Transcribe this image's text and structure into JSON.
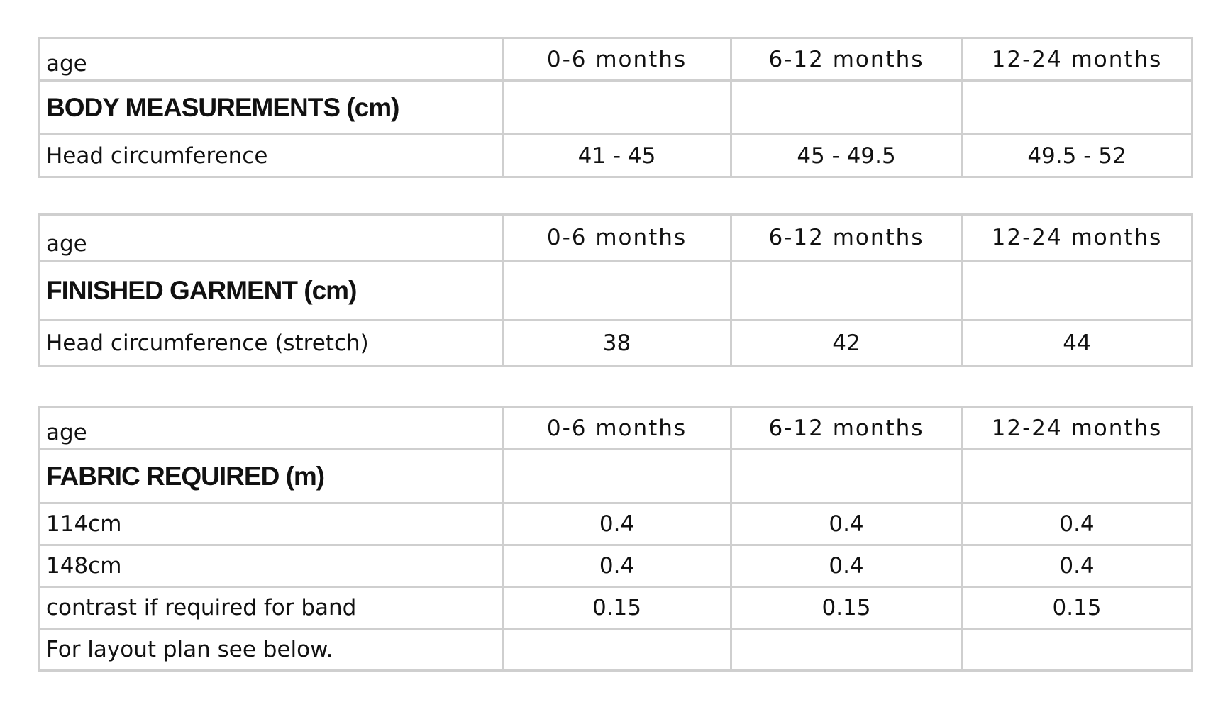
{
  "tables": [
    {
      "header": [
        "age",
        "0-6 months",
        "6-12 months",
        "12-24 months"
      ],
      "section": "BODY MEASUREMENTS (cm)",
      "rows": [
        [
          "Head circumference",
          "41 - 45",
          "45 - 49.5",
          "49.5 - 52"
        ]
      ]
    },
    {
      "header": [
        "age",
        "0-6 months",
        "6-12 months",
        "12-24 months"
      ],
      "section": "FINISHED GARMENT (cm)",
      "rows": [
        [
          "Head circumference (stretch)",
          "38",
          "42",
          "44"
        ]
      ]
    },
    {
      "header": [
        "age",
        "0-6 months",
        "6-12 months",
        "12-24 months"
      ],
      "section": "FABRIC REQUIRED (m)",
      "rows": [
        [
          "114cm",
          "0.4",
          "0.4",
          "0.4"
        ],
        [
          "148cm",
          "0.4",
          "0.4",
          "0.4"
        ],
        [
          "contrast if required for band",
          "0.15",
          "0.15",
          "0.15"
        ],
        [
          "For layout plan see below."
        ]
      ]
    }
  ]
}
